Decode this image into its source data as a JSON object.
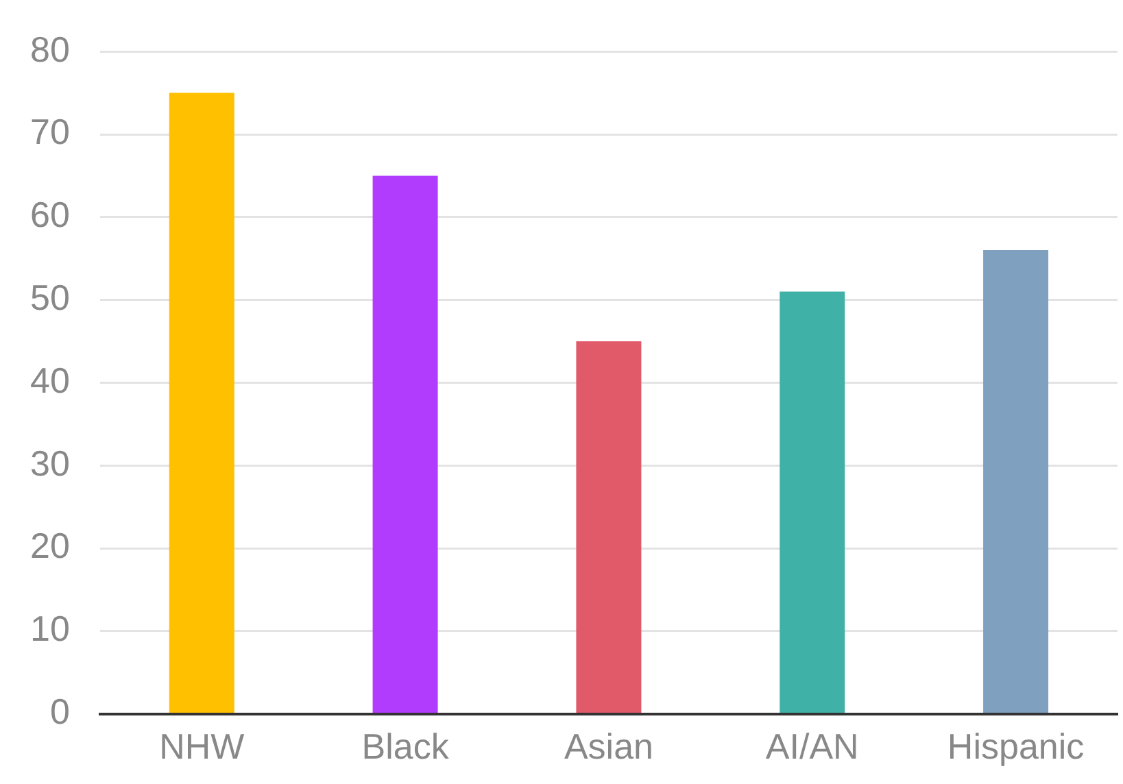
{
  "chart_data": {
    "type": "bar",
    "categories": [
      "NHW",
      "Black",
      "Asian",
      "AI/AN",
      "Hispanic"
    ],
    "values": [
      75,
      65,
      45,
      51,
      56
    ],
    "colors": [
      "#ffc000",
      "#b23cfd",
      "#e15a6a",
      "#40b1a6",
      "#7fa0bf"
    ],
    "ylim": [
      0,
      80
    ],
    "yticks": [
      0,
      10,
      20,
      30,
      40,
      50,
      60,
      70,
      80
    ],
    "grid": "y",
    "legend": false
  }
}
